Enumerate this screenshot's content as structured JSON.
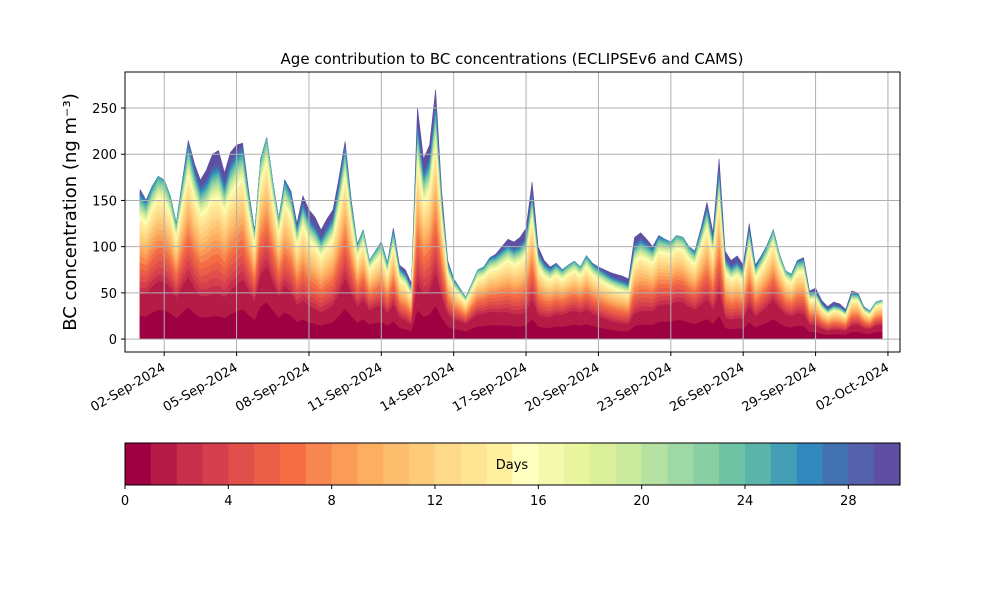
{
  "chart_data": {
    "type": "area",
    "stacked": true,
    "title": "Age contribution to BC concentrations (ECLIPSEv6 and CAMS)",
    "xlabel": "",
    "ylabel": "BC concentration (ng m⁻³)",
    "ylim": [
      -14,
      289
    ],
    "xlim": [
      "2024-08-31T09:00",
      "2024-10-02T12:00"
    ],
    "y_ticks": [
      0,
      50,
      100,
      150,
      200,
      250
    ],
    "x_ticks": [
      "02-Sep-2024",
      "05-Sep-2024",
      "08-Sep-2024",
      "11-Sep-2024",
      "14-Sep-2024",
      "17-Sep-2024",
      "20-Sep-2024",
      "23-Sep-2024",
      "26-Sep-2024",
      "29-Sep-2024",
      "02-Oct-2024"
    ],
    "grid": true,
    "colorbar": {
      "label": "Days",
      "range": [
        0,
        30
      ],
      "ticks": [
        0,
        4,
        8,
        12,
        16,
        20,
        24,
        28
      ],
      "colormap": "Spectral",
      "colors": [
        "#9e0142",
        "#b41b47",
        "#c72f4b",
        "#d6404e",
        "#e14f4a",
        "#ea5f47",
        "#f46d43",
        "#f88650",
        "#fa9c58",
        "#fdae61",
        "#fdbe6e",
        "#fecb7a",
        "#fed989",
        "#fee593",
        "#fff0a0",
        "#ffffbf",
        "#f5f9ae",
        "#e9f59c",
        "#dcf09b",
        "#caea9e",
        "#b5e1a2",
        "#9ed8a4",
        "#88cfa4",
        "#6fc3a5",
        "#5ab4a9",
        "#449fb5",
        "#3288bd",
        "#4272b2",
        "#5460a9",
        "#5e4fa2"
      ]
    },
    "series_note_total_x": [
      "2024-09-01T00:00",
      "2024-09-01T06:00",
      "2024-09-01T12:00",
      "2024-09-01T18:00",
      "2024-09-02T00:00",
      "2024-09-02T06:00",
      "2024-09-02T12:00",
      "2024-09-02T18:00",
      "2024-09-03T00:00",
      "2024-09-03T06:00",
      "2024-09-03T12:00",
      "2024-09-03T18:00",
      "2024-09-04T00:00",
      "2024-09-04T06:00",
      "2024-09-04T12:00",
      "2024-09-04T18:00",
      "2024-09-05T00:00",
      "2024-09-05T06:00",
      "2024-09-05T12:00",
      "2024-09-05T18:00",
      "2024-09-06T00:00",
      "2024-09-06T06:00",
      "2024-09-06T12:00",
      "2024-09-06T18:00",
      "2024-09-07T00:00",
      "2024-09-07T06:00",
      "2024-09-07T12:00",
      "2024-09-07T18:00",
      "2024-09-08T00:00",
      "2024-09-08T06:00",
      "2024-09-08T12:00",
      "2024-09-08T18:00",
      "2024-09-09T00:00",
      "2024-09-09T06:00",
      "2024-09-09T12:00",
      "2024-09-09T18:00",
      "2024-09-10T00:00",
      "2024-09-10T06:00",
      "2024-09-10T12:00",
      "2024-09-10T18:00",
      "2024-09-11T00:00",
      "2024-09-11T06:00",
      "2024-09-11T12:00",
      "2024-09-11T18:00",
      "2024-09-12T00:00",
      "2024-09-12T06:00",
      "2024-09-12T12:00",
      "2024-09-12T18:00",
      "2024-09-13T00:00",
      "2024-09-13T06:00",
      "2024-09-13T12:00",
      "2024-09-13T18:00",
      "2024-09-14T00:00",
      "2024-09-14T06:00",
      "2024-09-14T12:00",
      "2024-09-14T18:00",
      "2024-09-15T00:00",
      "2024-09-15T06:00",
      "2024-09-15T12:00",
      "2024-09-15T18:00",
      "2024-09-16T00:00",
      "2024-09-16T06:00",
      "2024-09-16T12:00",
      "2024-09-16T18:00",
      "2024-09-17T00:00",
      "2024-09-17T06:00",
      "2024-09-17T12:00",
      "2024-09-17T18:00",
      "2024-09-18T00:00",
      "2024-09-18T06:00",
      "2024-09-18T12:00",
      "2024-09-18T18:00",
      "2024-09-19T00:00",
      "2024-09-19T06:00",
      "2024-09-19T12:00",
      "2024-09-19T18:00",
      "2024-09-20T00:00",
      "2024-09-20T06:00",
      "2024-09-20T12:00",
      "2024-09-20T18:00",
      "2024-09-21T00:00",
      "2024-09-21T06:00",
      "2024-09-21T12:00",
      "2024-09-21T18:00",
      "2024-09-22T00:00",
      "2024-09-22T06:00",
      "2024-09-22T12:00",
      "2024-09-22T18:00",
      "2024-09-23T00:00",
      "2024-09-23T06:00",
      "2024-09-23T12:00",
      "2024-09-23T18:00",
      "2024-09-24T00:00",
      "2024-09-24T06:00",
      "2024-09-24T12:00",
      "2024-09-24T18:00",
      "2024-09-25T00:00",
      "2024-09-25T06:00",
      "2024-09-25T12:00",
      "2024-09-25T18:00",
      "2024-09-26T00:00",
      "2024-09-26T06:00",
      "2024-09-26T12:00",
      "2024-09-26T18:00",
      "2024-09-27T00:00",
      "2024-09-27T06:00",
      "2024-09-27T12:00",
      "2024-09-27T18:00",
      "2024-09-28T00:00",
      "2024-09-28T06:00",
      "2024-09-28T12:00",
      "2024-09-28T18:00",
      "2024-09-29T00:00",
      "2024-09-29T06:00",
      "2024-09-29T12:00",
      "2024-09-29T18:00",
      "2024-09-30T00:00",
      "2024-09-30T06:00",
      "2024-09-30T12:00",
      "2024-09-30T18:00",
      "2024-10-01T00:00",
      "2024-10-01T06:00",
      "2024-10-01T12:00",
      "2024-10-01T18:00"
    ],
    "total": [
      162,
      150,
      165,
      176,
      172,
      155,
      125,
      170,
      215,
      190,
      172,
      183,
      200,
      204,
      180,
      202,
      210,
      212,
      160,
      116,
      195,
      218,
      170,
      130,
      172,
      160,
      125,
      155,
      140,
      132,
      118,
      130,
      140,
      175,
      214,
      150,
      102,
      118,
      85,
      95,
      105,
      82,
      120,
      80,
      75,
      60,
      250,
      195,
      210,
      270,
      160,
      85,
      65,
      55,
      45,
      60,
      75,
      78,
      88,
      92,
      100,
      108,
      105,
      110,
      120,
      170,
      100,
      85,
      78,
      82,
      75,
      80,
      84,
      78,
      90,
      82,
      78,
      75,
      72,
      70,
      68,
      65,
      110,
      115,
      108,
      100,
      112,
      108,
      105,
      112,
      110,
      100,
      95,
      120,
      148,
      115,
      195,
      95,
      85,
      90,
      80,
      125,
      80,
      90,
      102,
      118,
      92,
      74,
      70,
      85,
      88,
      52,
      55,
      42,
      35,
      40,
      38,
      32,
      52,
      50,
      35,
      30,
      40,
      42,
      48,
      55
    ],
    "fraction_under_2_days": 0.3,
    "fraction_under_8_days": 0.55,
    "fraction_under_15_days": 0.8
  }
}
